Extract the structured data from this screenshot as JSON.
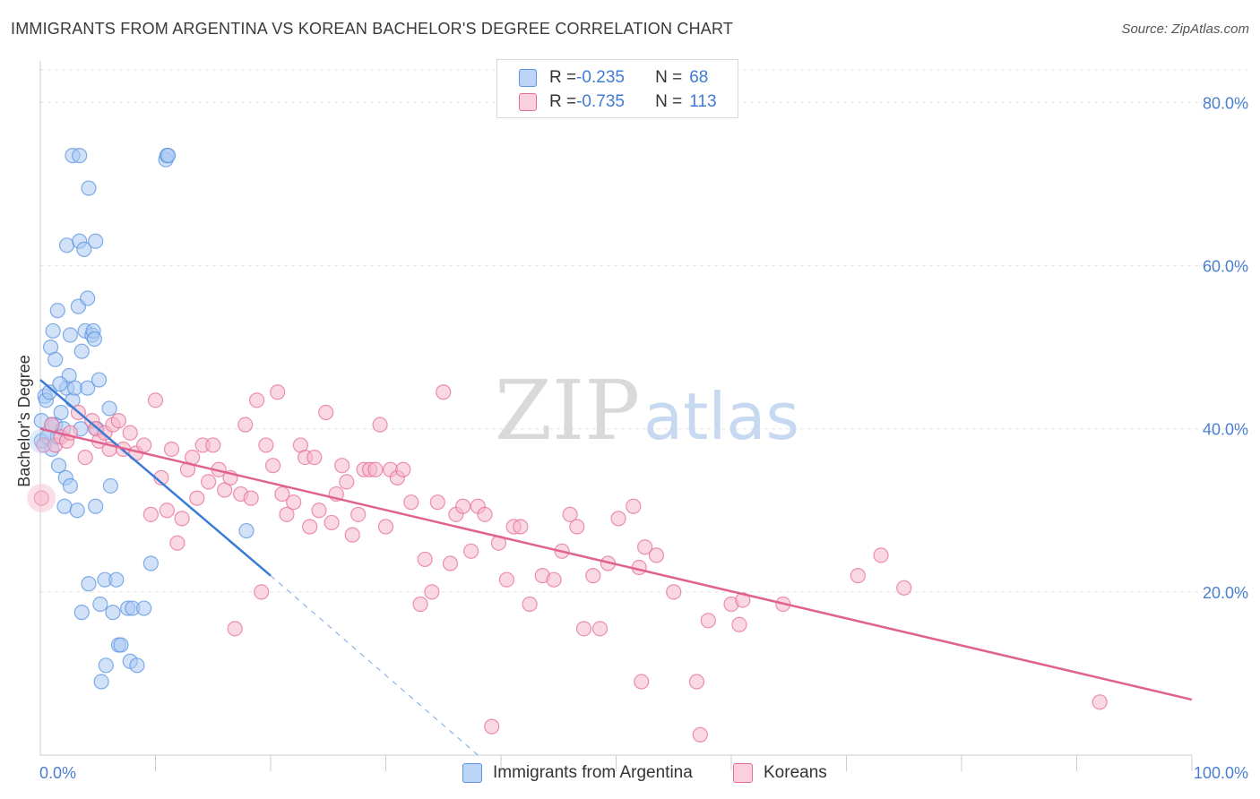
{
  "title": "IMMIGRANTS FROM ARGENTINA VS KOREAN BACHELOR'S DEGREE CORRELATION CHART",
  "source": "Source: ZipAtlas.com",
  "watermark": {
    "zip": "ZIP",
    "atlas": "atlas"
  },
  "legend": {
    "rows": [
      {
        "r_label": "R = ",
        "r_value": "-0.235",
        "n_label": "N = ",
        "n_value": "68",
        "color": "#a9c8f2"
      },
      {
        "r_label": "R = ",
        "r_value": "-0.735",
        "n_label": "N = ",
        "n_value": "113",
        "color": "#f6b8cb"
      }
    ]
  },
  "bottom_legend": [
    {
      "label": "Immigrants from Argentina",
      "color": "#a9c8f2"
    },
    {
      "label": "Koreans",
      "color": "#f6b8cb"
    }
  ],
  "chart_data": {
    "type": "scatter",
    "title": "IMMIGRANTS FROM ARGENTINA VS KOREAN BACHELOR'S DEGREE CORRELATION CHART",
    "xlabel": "",
    "ylabel": "Bachelor's Degree",
    "xlim": [
      0,
      100
    ],
    "ylim": [
      0,
      84
    ],
    "x_tick_labels": [
      "0.0%",
      "100.0%"
    ],
    "y_ticks": [
      20,
      40,
      60,
      80
    ],
    "y_tick_labels": [
      "20.0%",
      "40.0%",
      "60.0%",
      "80.0%"
    ],
    "grid": true,
    "legend_position": "top-center",
    "series": [
      {
        "name": "Immigrants from Argentina",
        "color": "#5b94e0",
        "fill": "#a9c8f2",
        "trend": {
          "x": [
            0,
            20
          ],
          "y": [
            46.0,
            22.0
          ],
          "dashed_extension_to": [
            38,
            0
          ]
        },
        "points": [
          [
            0.1,
            38.5
          ],
          [
            0.1,
            41.0
          ],
          [
            0.4,
            44.0
          ],
          [
            0.5,
            43.5
          ],
          [
            0.6,
            39.0
          ],
          [
            0.8,
            44.5
          ],
          [
            1.0,
            37.5
          ],
          [
            0.9,
            50.0
          ],
          [
            1.1,
            52.0
          ],
          [
            1.3,
            48.5
          ],
          [
            1.5,
            54.5
          ],
          [
            1.3,
            40.5
          ],
          [
            1.5,
            39.0
          ],
          [
            1.8,
            42.0
          ],
          [
            1.6,
            35.5
          ],
          [
            2.1,
            30.5
          ],
          [
            2.2,
            34.0
          ],
          [
            2.3,
            45.0
          ],
          [
            2.3,
            62.5
          ],
          [
            2.5,
            46.5
          ],
          [
            2.6,
            51.5
          ],
          [
            2.6,
            33.0
          ],
          [
            2.8,
            73.5
          ],
          [
            2.8,
            43.5
          ],
          [
            3.0,
            45.0
          ],
          [
            3.2,
            30.0
          ],
          [
            3.3,
            55.0
          ],
          [
            3.4,
            63.0
          ],
          [
            3.6,
            49.5
          ],
          [
            3.4,
            73.5
          ],
          [
            3.5,
            40.0
          ],
          [
            3.6,
            17.5
          ],
          [
            3.8,
            62.0
          ],
          [
            3.9,
            52.0
          ],
          [
            4.1,
            45.0
          ],
          [
            4.1,
            56.0
          ],
          [
            4.2,
            69.5
          ],
          [
            4.2,
            21.0
          ],
          [
            4.5,
            51.5
          ],
          [
            4.6,
            52.0
          ],
          [
            4.7,
            51.0
          ],
          [
            4.8,
            30.5
          ],
          [
            4.9,
            40.0
          ],
          [
            4.8,
            63.0
          ],
          [
            5.1,
            46.0
          ],
          [
            5.2,
            18.5
          ],
          [
            5.3,
            9.0
          ],
          [
            5.6,
            21.5
          ],
          [
            5.7,
            11.0
          ],
          [
            6.0,
            42.5
          ],
          [
            6.1,
            33.0
          ],
          [
            6.3,
            17.5
          ],
          [
            6.6,
            21.5
          ],
          [
            6.8,
            13.5
          ],
          [
            7.0,
            13.5
          ],
          [
            7.6,
            18.0
          ],
          [
            7.8,
            11.5
          ],
          [
            8.0,
            18.0
          ],
          [
            8.4,
            11.0
          ],
          [
            9.0,
            18.0
          ],
          [
            9.6,
            23.5
          ],
          [
            10.9,
            73.0
          ],
          [
            11.0,
            73.5
          ],
          [
            11.1,
            73.5
          ],
          [
            17.9,
            27.5
          ],
          [
            1.0,
            40.5
          ],
          [
            2.0,
            40.0
          ],
          [
            1.7,
            45.5
          ]
        ]
      },
      {
        "name": "Koreans",
        "color": "#e66d98",
        "fill": "#f6b8cb",
        "trend": {
          "x": [
            0,
            100
          ],
          "y": [
            40.0,
            6.8
          ]
        },
        "points": [
          [
            0.1,
            31.5
          ],
          [
            0.3,
            38.0
          ],
          [
            1.0,
            40.5
          ],
          [
            1.3,
            38.0
          ],
          [
            1.8,
            39.0
          ],
          [
            2.3,
            38.5
          ],
          [
            2.6,
            39.5
          ],
          [
            3.3,
            42.0
          ],
          [
            3.9,
            36.5
          ],
          [
            4.5,
            41.0
          ],
          [
            4.8,
            40.0
          ],
          [
            5.1,
            38.5
          ],
          [
            5.6,
            39.5
          ],
          [
            6.0,
            37.5
          ],
          [
            6.3,
            40.5
          ],
          [
            6.8,
            41.0
          ],
          [
            7.2,
            37.5
          ],
          [
            7.8,
            39.5
          ],
          [
            8.3,
            37.0
          ],
          [
            9.0,
            38.0
          ],
          [
            9.6,
            29.5
          ],
          [
            10.0,
            43.5
          ],
          [
            10.5,
            34.0
          ],
          [
            11.0,
            30.0
          ],
          [
            11.4,
            37.5
          ],
          [
            11.9,
            26.0
          ],
          [
            12.3,
            29.0
          ],
          [
            12.8,
            35.0
          ],
          [
            13.2,
            36.5
          ],
          [
            13.6,
            31.5
          ],
          [
            14.1,
            38.0
          ],
          [
            14.6,
            33.5
          ],
          [
            15.0,
            38.0
          ],
          [
            15.5,
            35.0
          ],
          [
            16.0,
            32.5
          ],
          [
            16.5,
            34.0
          ],
          [
            16.9,
            15.5
          ],
          [
            17.4,
            32.0
          ],
          [
            17.8,
            40.5
          ],
          [
            18.3,
            31.5
          ],
          [
            18.8,
            43.5
          ],
          [
            19.2,
            20.0
          ],
          [
            19.6,
            38.0
          ],
          [
            20.2,
            35.5
          ],
          [
            20.6,
            44.5
          ],
          [
            21.0,
            32.0
          ],
          [
            21.4,
            29.5
          ],
          [
            22.0,
            31.0
          ],
          [
            22.6,
            38.0
          ],
          [
            23.0,
            36.5
          ],
          [
            23.4,
            28.0
          ],
          [
            23.8,
            36.5
          ],
          [
            24.2,
            30.0
          ],
          [
            24.8,
            42.0
          ],
          [
            25.3,
            28.5
          ],
          [
            25.7,
            32.0
          ],
          [
            26.2,
            35.5
          ],
          [
            26.6,
            33.5
          ],
          [
            27.1,
            27.0
          ],
          [
            27.6,
            29.5
          ],
          [
            28.1,
            35.0
          ],
          [
            28.6,
            35.0
          ],
          [
            29.1,
            35.0
          ],
          [
            29.5,
            40.5
          ],
          [
            30.0,
            28.0
          ],
          [
            30.4,
            35.0
          ],
          [
            31.0,
            34.0
          ],
          [
            31.5,
            35.0
          ],
          [
            32.2,
            31.0
          ],
          [
            33.0,
            18.5
          ],
          [
            33.4,
            24.0
          ],
          [
            34.0,
            20.0
          ],
          [
            34.5,
            31.0
          ],
          [
            35.0,
            44.5
          ],
          [
            35.6,
            23.5
          ],
          [
            36.1,
            29.5
          ],
          [
            36.7,
            30.5
          ],
          [
            37.4,
            25.0
          ],
          [
            38.0,
            30.5
          ],
          [
            38.6,
            29.5
          ],
          [
            39.2,
            3.5
          ],
          [
            39.8,
            26.0
          ],
          [
            40.5,
            21.5
          ],
          [
            41.1,
            28.0
          ],
          [
            41.7,
            28.0
          ],
          [
            42.5,
            18.5
          ],
          [
            43.6,
            22.0
          ],
          [
            44.6,
            21.5
          ],
          [
            45.3,
            25.0
          ],
          [
            46.0,
            29.5
          ],
          [
            46.6,
            28.0
          ],
          [
            47.2,
            15.5
          ],
          [
            48.0,
            22.0
          ],
          [
            48.6,
            15.5
          ],
          [
            49.3,
            23.5
          ],
          [
            50.2,
            29.0
          ],
          [
            51.5,
            30.5
          ],
          [
            52.0,
            23.0
          ],
          [
            52.2,
            9.0
          ],
          [
            52.5,
            25.5
          ],
          [
            53.5,
            24.5
          ],
          [
            55.0,
            20.0
          ],
          [
            57.0,
            9.0
          ],
          [
            57.3,
            2.5
          ],
          [
            58.0,
            16.5
          ],
          [
            60.0,
            18.5
          ],
          [
            60.7,
            16.0
          ],
          [
            61.0,
            19.0
          ],
          [
            64.5,
            18.5
          ],
          [
            71.0,
            22.0
          ],
          [
            73.0,
            24.5
          ],
          [
            75.0,
            20.5
          ],
          [
            92.0,
            6.5
          ]
        ]
      }
    ]
  }
}
